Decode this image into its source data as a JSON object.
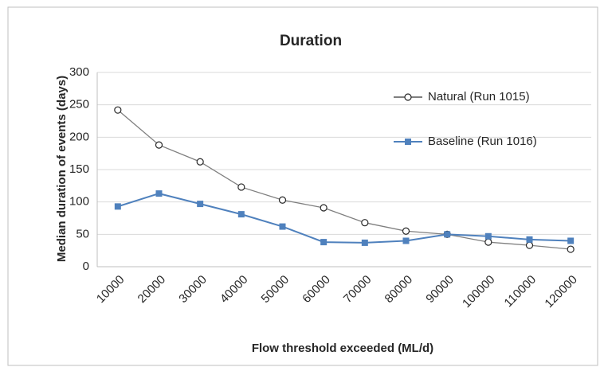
{
  "chart_data": {
    "type": "line",
    "title": "Duration",
    "x_label": "Flow threshold exceeded (ML/d)",
    "y_label": "Median duration of events (days)",
    "categories": [
      "10000",
      "20000",
      "30000",
      "40000",
      "50000",
      "60000",
      "70000",
      "80000",
      "90000",
      "100000",
      "110000",
      "120000"
    ],
    "series": [
      {
        "name": "Natural (Run 1015)",
        "color": "#7f7f7f",
        "marker": "circle",
        "values": [
          242,
          188,
          162,
          123,
          103,
          91,
          68,
          55,
          50,
          38,
          33,
          27
        ]
      },
      {
        "name": "Baseline (Run 1016)",
        "color": "#4f81bd",
        "marker": "square",
        "values": [
          93,
          113,
          97,
          81,
          62,
          38,
          37,
          40,
          50,
          47,
          42,
          40
        ]
      }
    ],
    "ylim": [
      0,
      300
    ],
    "yticks": [
      0,
      50,
      100,
      150,
      200,
      250,
      300
    ],
    "grid": true
  }
}
